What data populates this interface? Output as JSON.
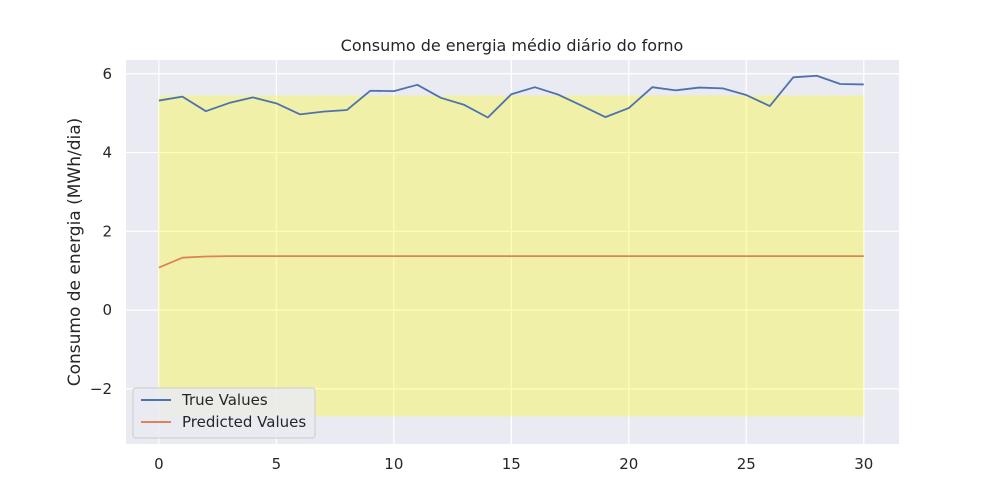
{
  "chart_data": {
    "type": "line",
    "title": "Consumo de energia médio diário do forno",
    "xlabel": "",
    "ylabel": "Consumo de energia (MWh/dia)",
    "xlim": [
      -1.4,
      31.5
    ],
    "ylim": [
      -3.4,
      6.35
    ],
    "xticks": [
      0,
      5,
      10,
      15,
      20,
      25,
      30
    ],
    "yticks": [
      -2,
      0,
      2,
      4,
      6
    ],
    "grid": true,
    "legend_position": "lower-left",
    "band": {
      "x": [
        0,
        30
      ],
      "y": [
        -2.7,
        5.45
      ],
      "color": "#ffff00",
      "alpha": 0.3
    },
    "x": [
      0,
      1,
      2,
      3,
      4,
      5,
      6,
      7,
      8,
      9,
      10,
      11,
      12,
      13,
      14,
      15,
      16,
      17,
      18,
      19,
      20,
      21,
      22,
      23,
      24,
      25,
      26,
      27,
      28,
      29,
      30
    ],
    "series": [
      {
        "name": "True Values",
        "color": "#4c72b0",
        "values": [
          5.32,
          5.42,
          5.05,
          5.26,
          5.4,
          5.25,
          4.97,
          5.04,
          5.08,
          5.57,
          5.56,
          5.72,
          5.39,
          5.21,
          4.89,
          5.48,
          5.66,
          5.47,
          5.19,
          4.9,
          5.13,
          5.66,
          5.58,
          5.65,
          5.63,
          5.46,
          5.18,
          5.91,
          5.95,
          5.74,
          5.73
        ]
      },
      {
        "name": "Predicted Values",
        "color": "#dd8452",
        "values": [
          1.08,
          1.33,
          1.36,
          1.37,
          1.37,
          1.37,
          1.37,
          1.37,
          1.37,
          1.37,
          1.37,
          1.37,
          1.37,
          1.37,
          1.37,
          1.37,
          1.37,
          1.37,
          1.37,
          1.37,
          1.37,
          1.37,
          1.37,
          1.37,
          1.37,
          1.37,
          1.37,
          1.37,
          1.37,
          1.37,
          1.37
        ]
      }
    ]
  }
}
